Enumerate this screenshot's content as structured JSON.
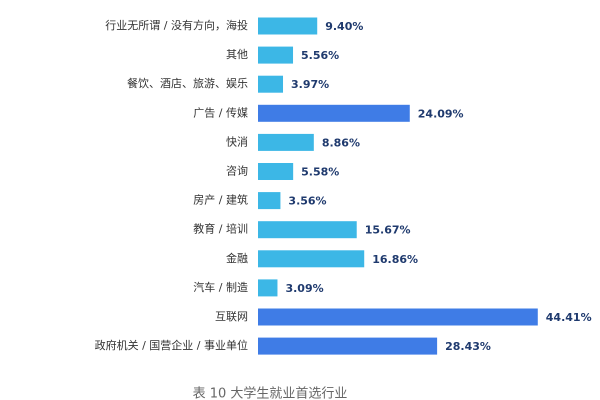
{
  "chart_data": {
    "type": "bar",
    "orientation": "horizontal",
    "title": "表 10 大学生就业首选行业",
    "categories": [
      "行业无所谓 / 没有方向，海投",
      "其他",
      "餐饮、酒店、旅游、娱乐",
      "广告 / 传媒",
      "快消",
      "咨询",
      "房产 / 建筑",
      "教育 / 培训",
      "金融",
      "汽车 / 制造",
      "互联网",
      "政府机关 / 国营企业 / 事业单位"
    ],
    "values": [
      9.4,
      5.56,
      3.97,
      24.09,
      8.86,
      5.58,
      3.56,
      15.67,
      16.86,
      3.09,
      44.41,
      28.43
    ],
    "value_labels": [
      "9.40%",
      "5.56%",
      "3.97%",
      "24.09%",
      "8.86%",
      "5.58%",
      "3.56%",
      "15.67%",
      "16.86%",
      "3.09%",
      "44.41%",
      "28.43%"
    ],
    "colors": [
      "#3cb7e6",
      "#3cb7e6",
      "#3cb7e6",
      "#3f7ce6",
      "#3cb7e6",
      "#3cb7e6",
      "#3cb7e6",
      "#3cb7e6",
      "#3cb7e6",
      "#3cb7e6",
      "#3f7ce6",
      "#3f7ce6"
    ]
  }
}
